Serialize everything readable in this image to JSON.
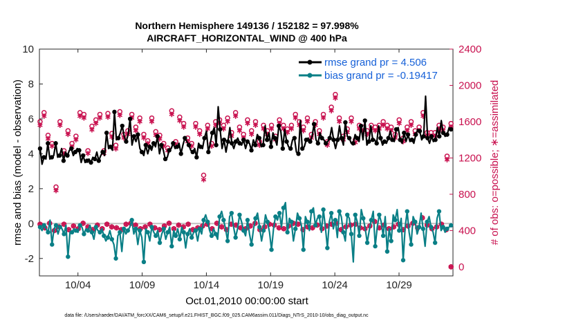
{
  "chart_data": {
    "type": "line",
    "title": "Northern Hemisphere 149136 / 152182 = 97.998%",
    "subtitle": "AIRCRAFT_HORIZONTAL_WIND @ 400 hPa",
    "xlabel": "Oct.01,2010 00:00:00 start",
    "ylabel": "rmse and bias (model - observation)",
    "ylabel_right": "# of obs: o=possible; ∗=assimilated",
    "xlim": [
      1,
      33.2
    ],
    "ylim": [
      -3,
      10
    ],
    "ylim_right": [
      -100,
      2400
    ],
    "x_ticks": [
      4,
      9,
      14,
      19,
      24,
      29
    ],
    "x_tick_labels": [
      "10/04",
      "10/09",
      "10/14",
      "10/19",
      "10/24",
      "10/29"
    ],
    "y_ticks": [
      -2,
      0,
      2,
      4,
      6,
      8,
      10
    ],
    "y_tick_labels": [
      "-2",
      "0",
      "2",
      "4",
      "6",
      "8",
      "10"
    ],
    "y_right_ticks": [
      0,
      400,
      800,
      1200,
      1600,
      2000,
      2400
    ],
    "y_right_tick_labels": [
      "0",
      "400",
      "800",
      "1200",
      "1600",
      "2000",
      "2400"
    ],
    "legend": {
      "position": "top-right",
      "entries": [
        "rmse grand pr = 4.506",
        "bias grand pr = -0.19417"
      ]
    },
    "colors": {
      "rmse": "#000000",
      "bias": "#0a7f86",
      "counts": "#c8104e",
      "zero_line": "#c0c0c0",
      "legend_text": "#1560d8"
    },
    "series": [
      {
        "name": "rmse grand pr = 4.506",
        "values": [
          4.3,
          3.4,
          3.8,
          3.7,
          4.6,
          3.7,
          3.8,
          3.9,
          4.6,
          3.8,
          3.9,
          4.3,
          3.6,
          4.1,
          3.9,
          4.2,
          4.3,
          3.9,
          4.1,
          4.3,
          4.2,
          3.5,
          3.9,
          3.5,
          3.6,
          3.7,
          3.5,
          3.8,
          3.7,
          4.1,
          3.6,
          3.9,
          4.1,
          3.9,
          5.2,
          4.3,
          4.4,
          4.2,
          6.4,
          4.8,
          4.9,
          5.2,
          5.6,
          5.0,
          4.7,
          5.1,
          6.0,
          4.5,
          5.0,
          4.7,
          5.1,
          4.3,
          4.1,
          3.9,
          4.5,
          4.0,
          4.4,
          4.2,
          4.6,
          4.4,
          5.0,
          4.0,
          4.5,
          4.2,
          3.7,
          3.8,
          4.2,
          4.3,
          4.6,
          4.3,
          4.4,
          4.6,
          4.0,
          4.5,
          4.9,
          4.7,
          4.5,
          4.2,
          4.1,
          4.3,
          3.8,
          4.6,
          4.4,
          4.3,
          4.9,
          5.3,
          4.1,
          4.6,
          5.2,
          5.5,
          4.5,
          6.7,
          5.4,
          4.3,
          4.8,
          4.1,
          4.7,
          5.5,
          4.6,
          4.3,
          4.7,
          4.9,
          4.6,
          4.5,
          4.8,
          4.3,
          4.7,
          4.6,
          4.2,
          4.8,
          4.5,
          5.1,
          4.9,
          4.4,
          4.5,
          5.6,
          4.8,
          5.2,
          4.4,
          5.2,
          4.9,
          4.5,
          5.6,
          5.3,
          4.3,
          5.4,
          4.7,
          4.4,
          4.3,
          4.8,
          4.9,
          4.1,
          4.0,
          5.9,
          4.3,
          4.4,
          4.8,
          4.9,
          4.7,
          5.0,
          5.7,
          4.8,
          4.6,
          5.2,
          4.9,
          4.8,
          4.6,
          4.7,
          4.9,
          5.5,
          4.8,
          4.3,
          4.8,
          5.6,
          4.9,
          4.5,
          5.8,
          5.0,
          4.9,
          4.6,
          4.6,
          5.1,
          4.9,
          4.7,
          5.6,
          4.8,
          5.9,
          4.5,
          4.7,
          5.6,
          4.8,
          4.8,
          4.6,
          5.6,
          4.9,
          4.5,
          4.7,
          4.6,
          4.9,
          5.3,
          4.8,
          4.7,
          5.4,
          5.5,
          4.8,
          4.6,
          5.2,
          4.7,
          5.1,
          4.7,
          4.8,
          4.6,
          5.1,
          5.4,
          5.3,
          4.8,
          5.0,
          7.3,
          4.9,
          4.6,
          5.0,
          4.7,
          4.8,
          5.5,
          5.0,
          5.9,
          5.2,
          5.0,
          5.1,
          5.5,
          5.4
        ]
      },
      {
        "name": "bias grand pr = -0.19417",
        "values": [
          -0.2,
          -0.4,
          -0.1,
          -0.3,
          -0.5,
          0.2,
          -1.2,
          -0.3,
          -0.1,
          -0.6,
          -0.2,
          -0.3,
          -0.6,
          -0.1,
          -1.9,
          -0.5,
          -0.5,
          -0.3,
          -0.4,
          -0.5,
          -0.1,
          -0.2,
          -0.6,
          -0.3,
          -0.4,
          -0.1,
          -0.5,
          -0.9,
          -0.2,
          -0.4,
          -0.5,
          -0.3,
          -0.7,
          -1.0,
          -0.8,
          -0.4,
          -0.9,
          -1.2,
          -2.0,
          -0.7,
          -0.5,
          -1.6,
          -0.3,
          -0.6,
          -0.4,
          -0.2,
          0.2,
          -0.6,
          -0.3,
          -1.2,
          -0.4,
          -0.8,
          -2.2,
          -0.3,
          -0.5,
          -1.0,
          -0.2,
          -0.5,
          -0.7,
          -0.4,
          -1.1,
          -0.6,
          -0.3,
          -0.9,
          -0.5,
          -0.2,
          -1.3,
          -0.4,
          -0.7,
          -0.3,
          -0.9,
          -0.2,
          -0.5,
          -1.4,
          -0.6,
          -0.3,
          -0.8,
          -0.5,
          -0.4,
          -1.0,
          -0.3,
          -0.6,
          0.2,
          0.5,
          0.1,
          -0.4,
          -0.7,
          -0.3,
          -0.6,
          -0.9,
          0.4,
          0.7,
          0.2,
          -0.3,
          -1.0,
          0.4,
          0.6,
          -0.2,
          -0.8,
          -0.3,
          0.5,
          0.1,
          -0.4,
          -0.7,
          0.2,
          -0.6,
          -1.2,
          -0.3,
          0.3,
          0.6,
          -0.2,
          -1.0,
          -0.4,
          0.5,
          0.1,
          -0.5,
          -1.5,
          -0.3,
          0.4,
          0.2,
          0.6,
          -0.2,
          0.9,
          1.2,
          -0.5,
          0.3,
          0.1,
          -1.0,
          -0.3,
          0.6,
          0.3,
          -0.1,
          -1.5,
          0.4,
          0.1,
          -0.4,
          0.7,
          0.9,
          -0.1,
          0.3,
          0.4,
          -0.5,
          0.8,
          -0.2,
          -1.4,
          0.1,
          0.6,
          -0.3,
          0.2,
          -0.8,
          0.7,
          0.4,
          -0.5,
          -1.0,
          0.5,
          0.3,
          -0.6,
          -2.2,
          0.5,
          0.1,
          -0.7,
          0.8,
          0.3,
          -0.3,
          -1.1,
          -0.4,
          0.2,
          0.7,
          -1.3,
          -0.2,
          0.5,
          0.1,
          -0.7,
          0.4,
          -1.6,
          -0.3,
          -1.0,
          0.5,
          0.2,
          0.8,
          -0.4,
          0.3,
          -2.1,
          -0.2,
          0.7,
          -0.5,
          -1.2,
          0.4,
          0.1,
          -0.6,
          -0.2,
          0.6,
          -0.3,
          -1.3,
          0.1,
          0.4,
          -0.2,
          -0.5,
          -1.1,
          0.3,
          0.7,
          -0.4,
          -0.2,
          -0.5,
          -0.3,
          -0.2,
          -0.1
        ]
      },
      {
        "name": "possible",
        "marker": "o",
        "values": [
          1600,
          1680,
          1700,
          480,
          1450,
          1480,
          1360,
          1360,
          880,
          420,
          1600,
          1620,
          1280,
          1390,
          1500,
          1520,
          1360,
          1380,
          1440,
          1650,
          1700,
          1640,
          1680,
          1400,
          1280,
          1380,
          1550,
          1640,
          1620,
          1540,
          1680,
          1600,
          1280,
          1400,
          1690,
          1650,
          1470,
          1360,
          1340,
          1700,
          1710,
          1500,
          1460,
          1600,
          1500,
          1460,
          1680,
          1560,
          1540,
          1520,
          1640,
          1700,
          1460,
          1420,
          1390,
          1580,
          1640,
          1660,
          1490,
          1540,
          1450,
          1600,
          1360,
          1420,
          1310,
          1760,
          1720,
          1330,
          1380,
          1620,
          1650,
          1610,
          1580,
          1520,
          1420,
          1490,
          1360,
          1400,
          1580,
          1600,
          1500,
          1440,
          1010,
          1500,
          1560,
          1580,
          1360,
          1450,
          1600,
          1640,
          1620,
          1440,
          1560,
          1700,
          1640,
          1380,
          1480,
          1620,
          1700,
          1620,
          1540,
          1400,
          1460,
          1560,
          1620,
          1440,
          1500,
          1580,
          1600,
          1360,
          1380,
          1520,
          1560,
          1620,
          1500,
          1440,
          1560,
          1640,
          1440,
          1400,
          1620,
          1640,
          1560,
          1360,
          1520,
          1640,
          1560,
          1480,
          1680,
          1700,
          1600,
          1400,
          1540,
          1620,
          1640,
          1520,
          1460,
          1640,
          1600,
          1640,
          1500,
          1620,
          1680,
          1720,
          1380,
          1400,
          1760,
          1840,
          1900,
          1560,
          1640,
          1560,
          1440,
          1200,
          1520,
          1560,
          1640,
          1540,
          1400,
          1460,
          1560,
          1580,
          1540,
          1520,
          1500,
          1600,
          1560,
          1620,
          1540,
          1480,
          1560,
          1600,
          1600,
          1500,
          1560,
          1640,
          1540,
          1480,
          1460,
          1520,
          1620,
          1660,
          1420,
          1380,
          1540,
          1580,
          1600,
          1560,
          1500,
          1450,
          1540,
          1620,
          1700,
          1500,
          1480,
          1560,
          1480,
          1540,
          1480,
          1420,
          1560,
          1580,
          1540,
          1600,
          1220,
          1540,
          1580
        ]
      },
      {
        "name": "assimilated",
        "marker": "*",
        "values": [
          1560,
          1640,
          1660,
          440,
          1410,
          1440,
          1330,
          1330,
          840,
          380,
          1560,
          1580,
          1250,
          1360,
          1460,
          1480,
          1320,
          1340,
          1400,
          1610,
          1660,
          1600,
          1640,
          1370,
          1250,
          1340,
          1510,
          1600,
          1580,
          1500,
          1640,
          1560,
          1250,
          1370,
          1650,
          1610,
          1430,
          1330,
          1300,
          1660,
          1670,
          1460,
          1420,
          1560,
          1460,
          1420,
          1640,
          1520,
          1500,
          1480,
          1600,
          1660,
          1420,
          1380,
          1360,
          1540,
          1600,
          1620,
          1450,
          1500,
          1410,
          1560,
          1330,
          1380,
          1280,
          1720,
          1680,
          1300,
          1350,
          1580,
          1610,
          1570,
          1540,
          1480,
          1380,
          1450,
          1330,
          1370,
          1540,
          1560,
          1460,
          1400,
          960,
          1460,
          1520,
          1540,
          1330,
          1410,
          1560,
          1600,
          1580,
          1400,
          1520,
          1660,
          1600,
          1340,
          1440,
          1580,
          1660,
          1580,
          1500,
          1370,
          1420,
          1520,
          1580,
          1400,
          1460,
          1540,
          1560,
          1330,
          1340,
          1480,
          1520,
          1580,
          1460,
          1400,
          1520,
          1600,
          1400,
          1370,
          1580,
          1600,
          1520,
          1330,
          1480,
          1600,
          1520,
          1440,
          1640,
          1660,
          1560,
          1370,
          1500,
          1580,
          1600,
          1480,
          1420,
          1600,
          1560,
          1600,
          1460,
          1580,
          1640,
          1680,
          1340,
          1370,
          1720,
          1800,
          1860,
          1520,
          1600,
          1520,
          1400,
          1160,
          1480,
          1520,
          1600,
          1500,
          1370,
          1420,
          1520,
          1540,
          1500,
          1480,
          1460,
          1560,
          1520,
          1580,
          1500,
          1440,
          1520,
          1560,
          1560,
          1460,
          1520,
          1600,
          1500,
          1440,
          1420,
          1480,
          1580,
          1620,
          1380,
          1340,
          1500,
          1540,
          1560,
          1520,
          1460,
          1410,
          1500,
          1580,
          1660,
          1460,
          1440,
          1520,
          1440,
          1500,
          1440,
          1380,
          1520,
          1540,
          1500,
          1560,
          1180,
          1500,
          1540
        ]
      },
      {
        "name": "counts-lower",
        "marker": "o*",
        "values": [
          470,
          430,
          480,
          400,
          440,
          470,
          410,
          450,
          420,
          480,
          440,
          410,
          460,
          420,
          470,
          440,
          430,
          410,
          470,
          480,
          460,
          420,
          440,
          470,
          430,
          410,
          450,
          480,
          420,
          460,
          440,
          470,
          410,
          430,
          450,
          470,
          420,
          480,
          440,
          410,
          470,
          460,
          430,
          420,
          450,
          480,
          410,
          440,
          470,
          460,
          430,
          420,
          450,
          480,
          470,
          410,
          440,
          430,
          460,
          420,
          450,
          470,
          480,
          410,
          440,
          460,
          470,
          430,
          420,
          450,
          500,
          430,
          460,
          420,
          440,
          470,
          410,
          450,
          480,
          430,
          540,
          460,
          420,
          440,
          470,
          410,
          0
        ]
      }
    ]
  },
  "footer": {
    "data_file": "data file: /Users/raeder/DAI/ATM_forcXX/CAM6_setup/f.e21.FHIST_BGC.f09_025.CAM6assim.011/Diags_NTrS_2010-10/obs_diag_output.nc"
  }
}
